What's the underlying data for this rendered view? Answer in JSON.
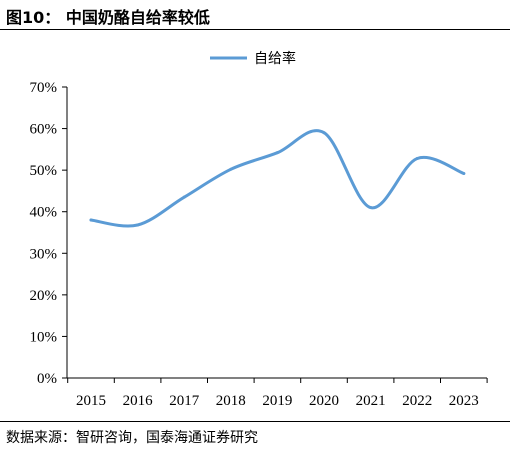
{
  "figure": {
    "title": "图10： 中国奶酪自给率较低",
    "source": "数据来源：智研咨询，国泰海通证券研究"
  },
  "colors": {
    "series": "#5B9BD5",
    "axis": "#000000"
  },
  "chart_data": {
    "type": "line",
    "title": "",
    "xlabel": "",
    "ylabel": "",
    "categories": [
      "2015",
      "2016",
      "2017",
      "2018",
      "2019",
      "2020",
      "2021",
      "2022",
      "2023"
    ],
    "y_ticks": [
      "0%",
      "10%",
      "20%",
      "30%",
      "40%",
      "50%",
      "60%",
      "70%"
    ],
    "ylim": [
      0,
      70
    ],
    "grid": false,
    "legend": "top-center",
    "smooth": true,
    "series": [
      {
        "name": "自给率",
        "values": [
          38,
          36.8,
          43.5,
          50.2,
          54.2,
          59,
          41,
          52.8,
          49.2
        ]
      }
    ]
  }
}
